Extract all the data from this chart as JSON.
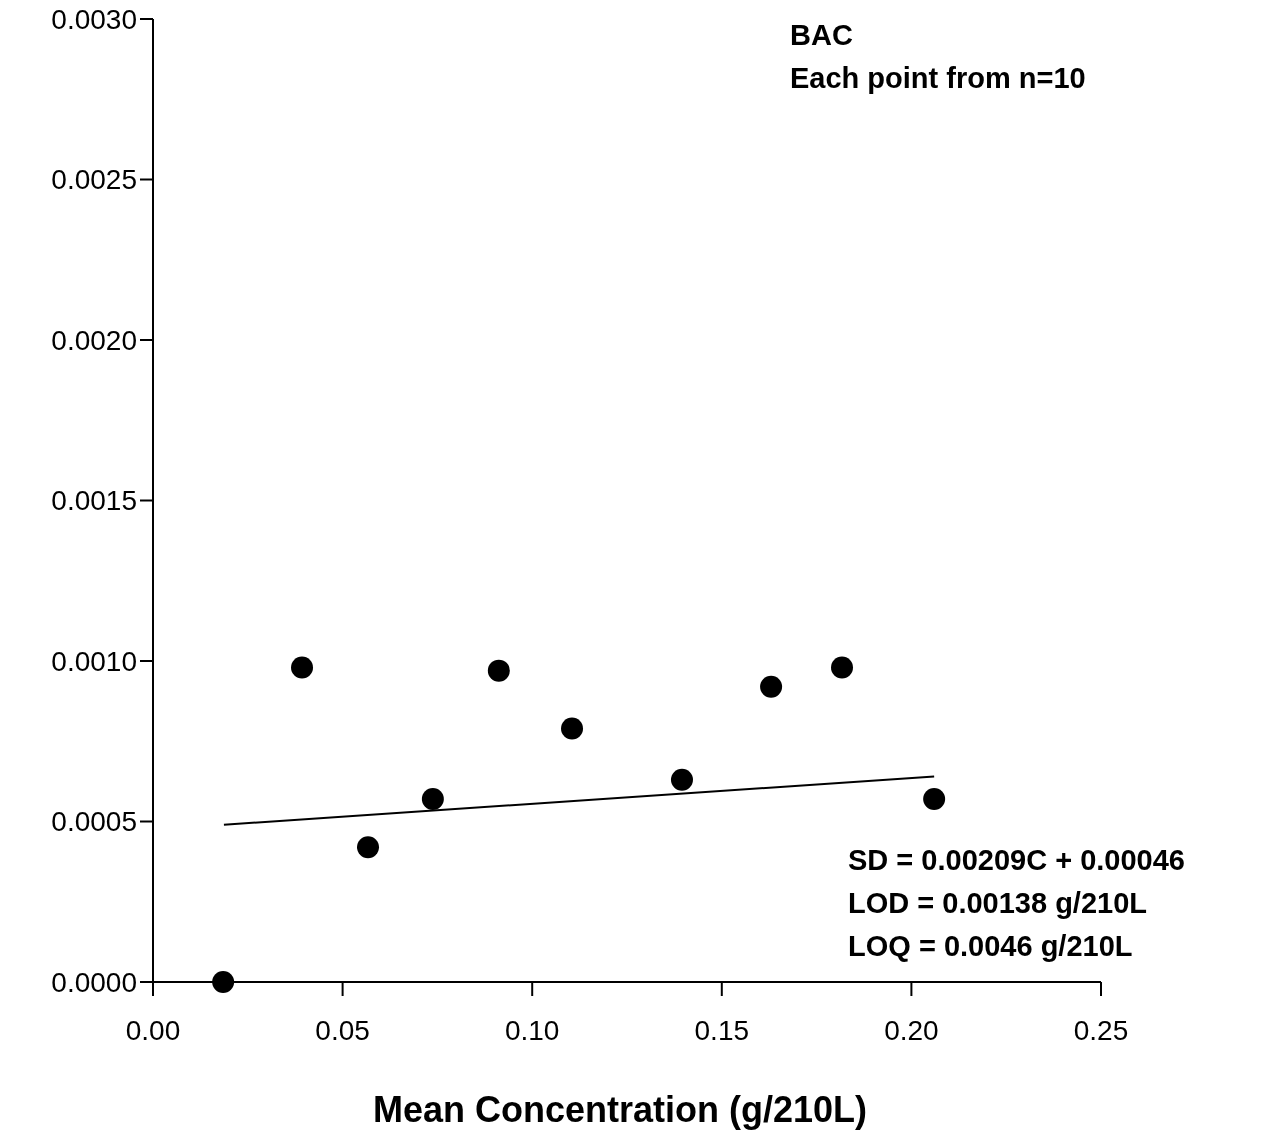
{
  "chart_data": {
    "type": "scatter",
    "xlabel": "Mean Concentration (g/210L)",
    "xlim": [
      0,
      0.25
    ],
    "xticks": [
      {
        "value": 0,
        "label": "0.00"
      },
      {
        "value": 0.05,
        "label": "0.05"
      },
      {
        "value": 0.1,
        "label": "0.10"
      },
      {
        "value": 0.15,
        "label": "0.15"
      },
      {
        "value": 0.2,
        "label": "0.20"
      },
      {
        "value": 0.25,
        "label": "0.25"
      }
    ],
    "ylim": [
      0,
      0.003
    ],
    "yticks": [
      {
        "value": 0,
        "label": "0.0000"
      },
      {
        "value": 0.0005,
        "label": "0.0005"
      },
      {
        "value": 0.001,
        "label": "0.0010"
      },
      {
        "value": 0.0015,
        "label": "0.0015"
      },
      {
        "value": 0.002,
        "label": "0.0020"
      },
      {
        "value": 0.0025,
        "label": "0.0025"
      },
      {
        "value": 0.003,
        "label": "0.0030"
      }
    ],
    "grid": false,
    "series": [
      {
        "marker": "circle",
        "color": "#000000",
        "x": [
          0.0185,
          0.0393,
          0.0567,
          0.0738,
          0.0912,
          0.1105,
          0.1395,
          0.163,
          0.1817,
          0.206
        ],
        "values": [
          0,
          0.00098,
          0.00042,
          0.00057,
          0.00097,
          0.00079,
          0.00063,
          0.00092,
          0.00098,
          0.00057
        ]
      },
      {
        "type": "line",
        "color": "#000000",
        "x": [
          0.0187,
          0.206
        ],
        "values": [
          0.00049,
          0.00064
        ]
      }
    ],
    "annotations": [
      "BAC\nEach point from n=10",
      "SD = 0.00209C + 0.00046\nLOD = 0.00138 g/210L\nLOQ = 0.0046 g/210L"
    ]
  }
}
